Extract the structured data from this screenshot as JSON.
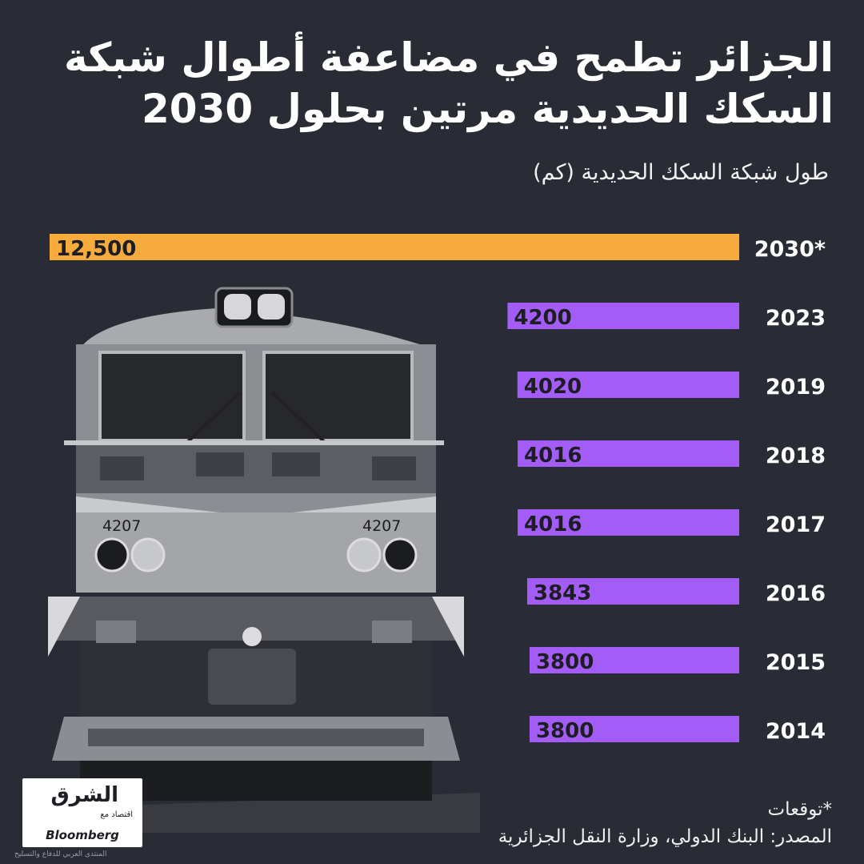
{
  "header": {
    "title_line1": "الجزائر تطمح في مضاعفة أطوال شبكة",
    "title_line2": "السكك الحديدية مرتين بحلول 2030",
    "subtitle": "طول شبكة السكك الحديدية (كم)"
  },
  "chart_data": {
    "type": "bar",
    "orientation": "horizontal",
    "categories": [
      "2030*",
      "2023",
      "2019",
      "2018",
      "2017",
      "2016",
      "2015",
      "2014"
    ],
    "values": [
      12500,
      4200,
      4020,
      4016,
      4016,
      3843,
      3800,
      3800
    ],
    "value_labels": [
      "12,500",
      "4200",
      "4020",
      "4016",
      "4016",
      "3843",
      "3800",
      "3800"
    ],
    "colors": [
      "#f7ab3c",
      "#a35cf5",
      "#a35cf5",
      "#a35cf5",
      "#a35cf5",
      "#a35cf5",
      "#a35cf5",
      "#a35cf5"
    ],
    "title": "طول شبكة السكك الحديدية (كم)",
    "grid": false,
    "legend": "none",
    "bar_direction": "right-to-left"
  },
  "train": {
    "number_left": "4207",
    "number_right": "4207"
  },
  "logo": {
    "arabic": "الشرق",
    "arabic_sub": "اقتصاد مع",
    "bloomberg": "Bloomberg"
  },
  "footer": {
    "note": "*توقعات",
    "source": "المصدر: البنك الدولي، وزارة النقل الجزائرية"
  },
  "watermark": "المنتدى العربي للدفاع والتسليح",
  "colors": {
    "background": "#2a2c35",
    "forecast_bar": "#f7ab3c",
    "historic_bar": "#a35cf5",
    "text": "#ffffff"
  }
}
